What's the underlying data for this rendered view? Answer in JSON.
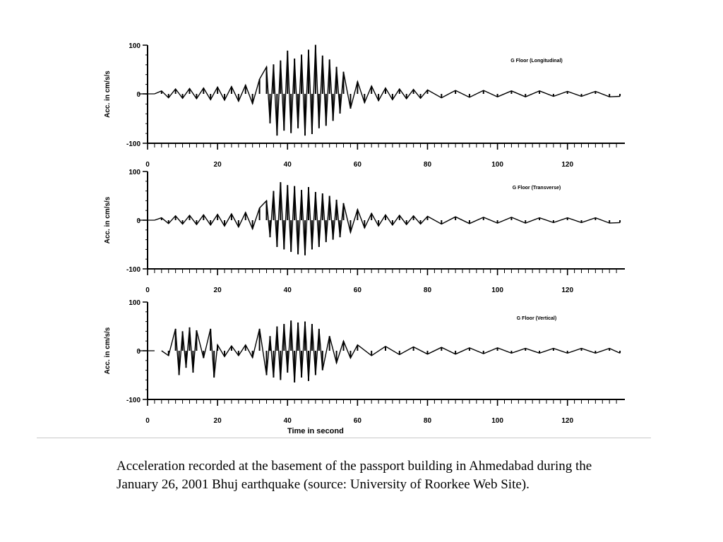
{
  "chart_data": [
    {
      "type": "line",
      "title": "G Floor (Longitudinal)",
      "ylabel": "Acc. in cm/s/s",
      "xlabel": "",
      "xlim": [
        0,
        136
      ],
      "ylim": [
        -100,
        100
      ],
      "x_ticks": [
        0,
        20,
        40,
        60,
        80,
        100,
        120
      ],
      "y_ticks": [
        -100,
        0,
        100
      ],
      "series": [
        {
          "x": [
            2,
            4,
            6,
            8,
            10,
            12,
            14,
            16,
            18,
            20,
            22,
            24,
            26,
            28,
            30,
            32,
            34,
            35,
            36,
            37,
            38,
            39,
            40,
            41,
            42,
            43,
            44,
            45,
            46,
            47,
            48,
            49,
            50,
            51,
            52,
            53,
            54,
            55,
            56,
            58,
            60,
            62,
            64,
            66,
            68,
            70,
            72,
            74,
            76,
            78,
            80,
            84,
            88,
            92,
            96,
            100,
            104,
            108,
            112,
            116,
            120,
            124,
            128,
            132,
            135
          ],
          "y": [
            0,
            6,
            -8,
            10,
            -9,
            11,
            -10,
            12,
            -12,
            14,
            -13,
            15,
            -15,
            18,
            -20,
            30,
            55,
            -60,
            60,
            -85,
            68,
            -75,
            88,
            -80,
            72,
            -70,
            80,
            -85,
            90,
            -82,
            100,
            -70,
            78,
            -65,
            70,
            -55,
            55,
            -40,
            45,
            -30,
            25,
            -18,
            16,
            -14,
            12,
            -12,
            10,
            -10,
            9,
            -9,
            8,
            -8,
            7,
            -7,
            7,
            -6,
            6,
            -6,
            6,
            -5,
            5,
            -5,
            5,
            -6,
            -5
          ]
        }
      ],
      "grid": false
    },
    {
      "type": "line",
      "title": "G Floor (Transverse)",
      "ylabel": "Acc. in cm/s/s",
      "xlabel": "",
      "xlim": [
        0,
        136
      ],
      "ylim": [
        -100,
        100
      ],
      "x_ticks": [
        0,
        20,
        40,
        60,
        80,
        100,
        120
      ],
      "y_ticks": [
        -100,
        0,
        100
      ],
      "series": [
        {
          "x": [
            2,
            4,
            6,
            8,
            10,
            12,
            14,
            16,
            18,
            20,
            22,
            24,
            26,
            28,
            30,
            32,
            34,
            35,
            36,
            37,
            38,
            39,
            40,
            41,
            42,
            43,
            44,
            45,
            46,
            47,
            48,
            49,
            50,
            51,
            52,
            53,
            54,
            55,
            56,
            58,
            60,
            62,
            64,
            66,
            68,
            70,
            72,
            74,
            76,
            78,
            80,
            84,
            88,
            92,
            96,
            100,
            104,
            108,
            112,
            116,
            120,
            124,
            128,
            132,
            135
          ],
          "y": [
            0,
            5,
            -7,
            9,
            -8,
            10,
            -9,
            11,
            -10,
            12,
            -12,
            13,
            -14,
            16,
            -18,
            25,
            40,
            -35,
            60,
            -55,
            78,
            -60,
            72,
            -65,
            70,
            -70,
            62,
            -72,
            68,
            -60,
            58,
            -55,
            55,
            -45,
            50,
            -40,
            42,
            -35,
            35,
            -25,
            22,
            -16,
            14,
            -12,
            11,
            -10,
            10,
            -9,
            9,
            -8,
            8,
            -8,
            7,
            -7,
            6,
            -6,
            6,
            -6,
            5,
            -5,
            5,
            -5,
            5,
            -6,
            -5
          ]
        }
      ],
      "grid": false
    },
    {
      "type": "line",
      "title": "G Floor (Vertical)",
      "ylabel": "Acc. in cm/s/s",
      "xlabel": "Time in second",
      "xlim": [
        0,
        136
      ],
      "ylim": [
        -100,
        100
      ],
      "x_ticks": [
        0,
        20,
        40,
        60,
        80,
        100,
        120
      ],
      "y_ticks": [
        -100,
        0,
        100
      ],
      "y_tick_labels": [
        "-100",
        "0",
        "100"
      ],
      "series": [
        {
          "x": [
            4,
            6,
            8,
            9,
            10,
            11,
            12,
            13,
            14,
            16,
            18,
            19,
            20,
            22,
            24,
            26,
            28,
            30,
            32,
            34,
            35,
            36,
            37,
            38,
            39,
            40,
            41,
            42,
            43,
            44,
            45,
            46,
            47,
            48,
            49,
            50,
            52,
            54,
            56,
            58,
            60,
            64,
            68,
            72,
            76,
            80,
            84,
            88,
            92,
            96,
            100,
            104,
            108,
            112,
            116,
            120,
            124,
            128,
            132,
            135
          ],
          "y": [
            0,
            -10,
            45,
            -50,
            40,
            -35,
            48,
            -45,
            42,
            -15,
            45,
            -55,
            12,
            -12,
            10,
            -10,
            12,
            -14,
            45,
            -50,
            30,
            -55,
            50,
            -60,
            55,
            -45,
            62,
            -65,
            58,
            -55,
            60,
            -62,
            55,
            -50,
            45,
            -40,
            30,
            -25,
            20,
            -15,
            12,
            -10,
            9,
            -8,
            8,
            -7,
            7,
            -7,
            6,
            -6,
            6,
            -5,
            5,
            -5,
            5,
            -5,
            5,
            -5,
            5,
            -5
          ]
        }
      ],
      "grid": false
    }
  ],
  "caption": "Acceleration recorded at the basement of the passport building in Ahmedabad during the January 26, 2001 Bhuj earthquake (source: University of Roorkee Web Site)."
}
